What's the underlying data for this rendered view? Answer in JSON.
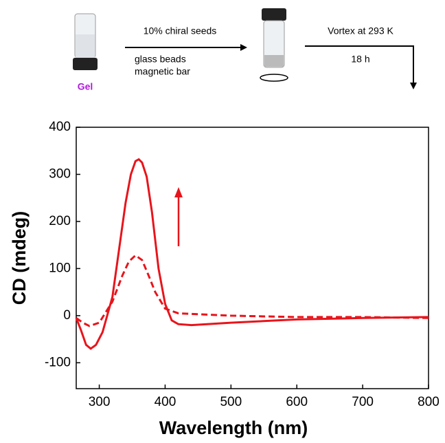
{
  "chart_data": {
    "type": "line",
    "x_label": "Wavelength (nm)",
    "y_label": "CD (mdeg)",
    "annotations": {
      "gel": "Gel",
      "step1_top": "10% chiral seeds",
      "step1_mid": "glass beads",
      "step1_bottom": "magnetic bar",
      "step2_top": "Vortex at 293 K",
      "step2_bottom": "18 h"
    },
    "xlim": [
      265,
      800
    ],
    "ylim": [
      -155,
      400
    ],
    "xticks": [
      300,
      400,
      500,
      600,
      700,
      800
    ],
    "yticks": [
      -100,
      0,
      100,
      200,
      300,
      400
    ],
    "series": [
      {
        "color": "#e8141b",
        "dash": "solid",
        "x": [
          265,
          272,
          280,
          287,
          295,
          305,
          320,
          330,
          340,
          348,
          355,
          360,
          365,
          372,
          380,
          390,
          400,
          410,
          420,
          440,
          500,
          600,
          700,
          800
        ],
        "values": [
          -5,
          -30,
          -62,
          -70,
          -62,
          -35,
          40,
          140,
          240,
          300,
          328,
          332,
          325,
          295,
          220,
          100,
          25,
          -10,
          -18,
          -20,
          -15,
          -8,
          -5,
          -3
        ]
      },
      {
        "color": "#e8141b",
        "dash": "dashed",
        "x": [
          265,
          275,
          285,
          300,
          320,
          335,
          345,
          355,
          365,
          375,
          385,
          400,
          420,
          500,
          600,
          700,
          800
        ],
        "values": [
          -5,
          -15,
          -22,
          -15,
          30,
          85,
          115,
          128,
          118,
          85,
          50,
          15,
          5,
          0,
          -3,
          -3,
          -5
        ]
      }
    ]
  }
}
